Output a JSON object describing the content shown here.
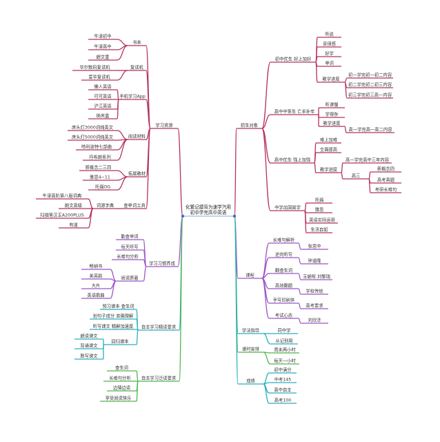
{
  "center": {
    "line1": "化繁记捷背为速学汽用",
    "line2": "初中学完高中英语"
  },
  "colors": {
    "crimson": "#b3305e",
    "purple": "#9b55c8",
    "teal": "#2aaebf",
    "green": "#4db54a",
    "node_dot": "#3a6fc4"
  },
  "left": [
    {
      "label": "学习资源",
      "children": [
        {
          "label": "书本",
          "children": [
            {
              "label": "牛津初中"
            },
            {
              "label": "牛津高中"
            },
            {
              "label": "朗文童"
            }
          ]
        },
        {
          "label": "复读机",
          "children": [
            {
              "label": "华尔数码复读机"
            },
            {
              "label": "爱华复读机"
            }
          ]
        },
        {
          "label": "手机学习App",
          "children": [
            {
              "label": "懒人英语"
            },
            {
              "label": "可可英语"
            },
            {
              "label": "沪江英语"
            },
            {
              "label": "纳米盒"
            }
          ]
        },
        {
          "label": "阅读材料",
          "children": [
            {
              "label": "床头灯3000词纯英文"
            },
            {
              "label": "床头灯5000词纯英文"
            },
            {
              "label": "哈利波特七部曲"
            },
            {
              "label": "丹布朗系列"
            }
          ]
        },
        {
          "label": "拓展教材",
          "children": [
            {
              "label": "新概念二三四"
            },
            {
              "label": "雅思4~11"
            },
            {
              "label": "托福OG"
            }
          ]
        },
        {
          "label": "查单词工具",
          "children": [
            {
              "label": "词源字典",
              "children": [
                {
                  "label": "牛津高阶第八版词典"
                },
                {
                  "label": "朗文高级"
                },
                {
                  "label": "扫描笔汉王A200PLUS"
                },
                {
                  "label": "有道"
                }
              ]
            }
          ]
        }
      ]
    },
    {
      "label": "学习习惯养成",
      "children": [
        {
          "label": "勤查单词"
        },
        {
          "label": "每天听写"
        },
        {
          "label": "长难句分析"
        },
        {
          "label": "阅读原著",
          "children": [
            {
              "label": "畅销书"
            },
            {
              "label": "美英剧"
            },
            {
              "label": "大片"
            },
            {
              "label": "英语歌曲"
            }
          ]
        }
      ]
    },
    {
      "label": "自主学习精读要求",
      "children": [
        {
          "label": "预习课本 查生词"
        },
        {
          "label": "划句子成分 准确理解"
        },
        {
          "label": "听写课文 精解加速度"
        },
        {
          "label": "回归课本",
          "children": [
            {
              "label": "朗读课文"
            },
            {
              "label": "背诵课文"
            },
            {
              "label": "默写课文"
            }
          ]
        }
      ]
    },
    {
      "label": "自主学习泛读要求",
      "children": [
        {
          "label": "查生词"
        },
        {
          "label": "长难句分析"
        },
        {
          "label": "边猜边读"
        },
        {
          "label": "享受阅读快乐"
        }
      ]
    }
  ],
  "right": [
    {
      "label": "招生对象",
      "children": [
        {
          "label": "初中优生 好上加好",
          "children": [
            {
              "label": "听说"
            },
            {
              "label": "音律感"
            },
            {
              "label": "好学"
            },
            {
              "label": "单词"
            },
            {
              "label": "教学进度",
              "children": [
                {
                  "label": "初一学完初一初二内容"
                },
                {
                  "label": "初二学完初二初三内容"
                },
                {
                  "label": "初三学完初三高一内容"
                }
              ]
            }
          ]
        },
        {
          "label": "高中中等生 亡羊补牢",
          "children": [
            {
              "label": "听课慢"
            },
            {
              "label": "学得杂"
            },
            {
              "label": "教学进度",
              "children": [
                {
                  "label": "高一学完高一高二内容"
                }
              ]
            }
          ]
        },
        {
          "label": "高中优生 强上加强",
          "children": [
            {
              "label": "难上加难"
            },
            {
              "label": "全面提高"
            },
            {
              "label": "教学进度",
              "children": [
                {
                  "label": "高一学完高中三年内容"
                },
                {
                  "label": "高三",
                  "children": [
                    {
                      "label": "新概念四"
                    },
                    {
                      "label": "高考真题"
                    },
                    {
                      "label": "考研长难句"
                    }
                  ]
                }
              ]
            }
          ]
        },
        {
          "label": "中学出国留学",
          "children": [
            {
              "label": "托福"
            },
            {
              "label": "雅思"
            },
            {
              "label": "英语实际运用"
            },
            {
              "label": "生活自如"
            }
          ]
        }
      ]
    },
    {
      "label": "课程",
      "children": [
        {
          "label": "长难句解析",
          "children": [
            {
              "label": "张思中"
            }
          ]
        },
        {
          "label": "逆向听写",
          "children": [
            {
              "label": "钟道隆"
            }
          ]
        },
        {
          "label": "翻查生词",
          "children": [
            {
              "label": "王朝晖 刘黎瑞"
            }
          ]
        },
        {
          "label": "高效翻题",
          "children": [
            {
              "label": "学校传统"
            }
          ]
        },
        {
          "label": "手写印刷体",
          "children": [
            {
              "label": "高考要求"
            }
          ]
        },
        {
          "label": "考试心态",
          "children": [
            {
              "label": "刘欣泽"
            }
          ]
        }
      ]
    },
    {
      "label": "学法指导",
      "children": [
        {
          "label": "同中学"
        },
        {
          "label": "从记到用"
        }
      ]
    },
    {
      "label": "课时安排",
      "children": [
        {
          "label": "周末两小时"
        },
        {
          "label": "每天一小时"
        }
      ]
    },
    {
      "label": "成绩",
      "children": [
        {
          "label": "初中满分"
        },
        {
          "label": "中考145"
        },
        {
          "label": "高中自主"
        },
        {
          "label": "高考100"
        }
      ]
    }
  ]
}
